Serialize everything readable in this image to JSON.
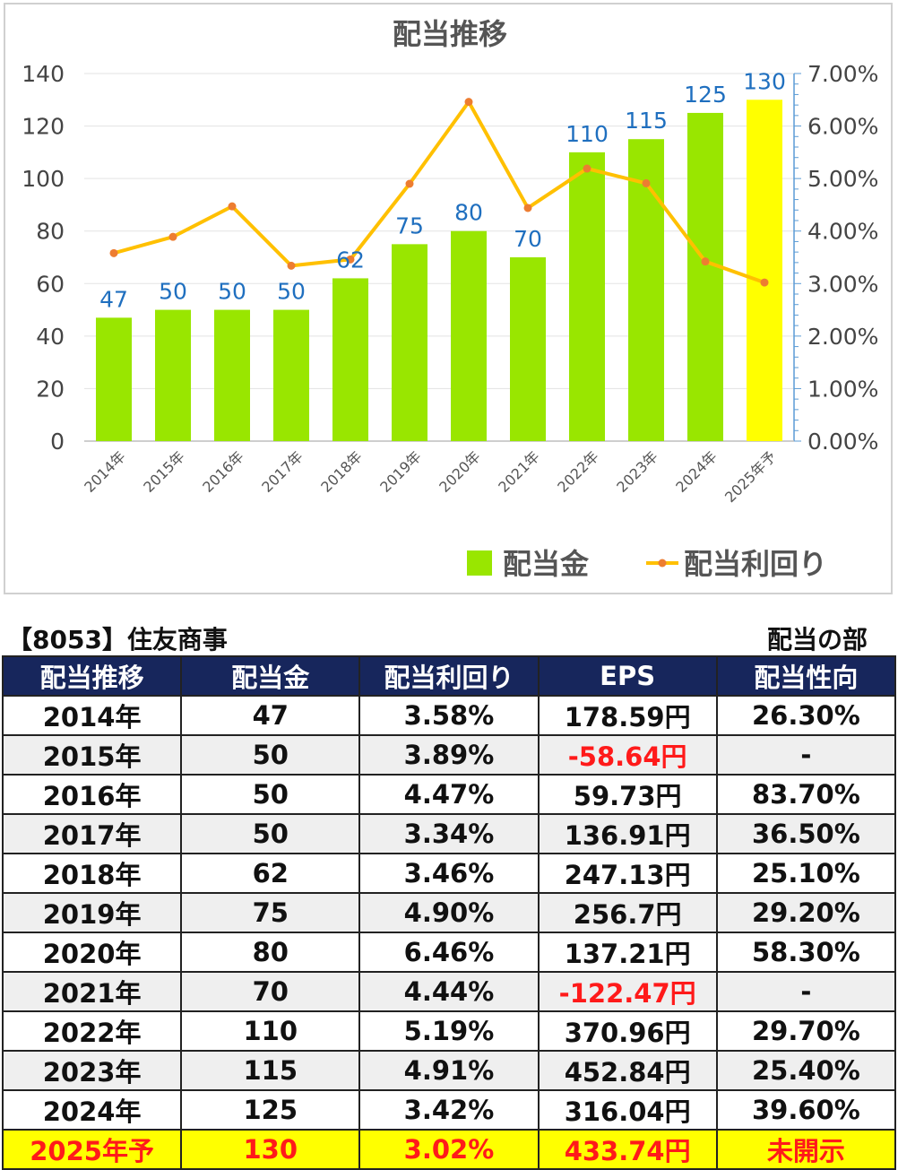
{
  "chart_data": {
    "type": "bar+line",
    "title": "配当推移",
    "categories": [
      "2014年",
      "2015年",
      "2016年",
      "2017年",
      "2018年",
      "2019年",
      "2020年",
      "2021年",
      "2022年",
      "2023年",
      "2024年",
      "2025年予"
    ],
    "series": [
      {
        "name": "配当金",
        "type": "bar",
        "axis": "left",
        "values": [
          47,
          50,
          50,
          50,
          62,
          75,
          80,
          70,
          110,
          115,
          125,
          130
        ],
        "labels": [
          "47",
          "50",
          "50",
          "50",
          "62",
          "75",
          "80",
          "70",
          "110",
          "115",
          "125",
          "130"
        ],
        "color": "#99e600",
        "highlight_last_color": "#ffff00"
      },
      {
        "name": "配当利回り",
        "type": "line",
        "axis": "right",
        "values": [
          3.58,
          3.89,
          4.47,
          3.34,
          3.46,
          4.9,
          6.46,
          4.44,
          5.19,
          4.91,
          3.42,
          3.02
        ],
        "color": "#ffc000",
        "marker_color": "#ed7d31"
      }
    ],
    "ylim": [
      0,
      140
    ],
    "yticks": [
      "0",
      "20",
      "40",
      "60",
      "80",
      "100",
      "120",
      "140"
    ],
    "y2lim": [
      0,
      7
    ],
    "y2ticks": [
      "0.00%",
      "1.00%",
      "2.00%",
      "3.00%",
      "4.00%",
      "5.00%",
      "6.00%",
      "7.00%"
    ],
    "label_color": "#1f6fbf",
    "grid": true,
    "legend": "bottom-right"
  },
  "caption": {
    "left": "【8053】住友商事",
    "right": "配当の部"
  },
  "table": {
    "headers": [
      "配当推移",
      "配当金",
      "配当利回り",
      "EPS",
      "配当性向"
    ],
    "rows": [
      {
        "cells": [
          "2014年",
          "47",
          "3.58%",
          "178.59円",
          "26.30%"
        ],
        "neg": false
      },
      {
        "cells": [
          "2015年",
          "50",
          "3.89%",
          "-58.64円",
          "-"
        ],
        "neg": true
      },
      {
        "cells": [
          "2016年",
          "50",
          "4.47%",
          "59.73円",
          "83.70%"
        ],
        "neg": false
      },
      {
        "cells": [
          "2017年",
          "50",
          "3.34%",
          "136.91円",
          "36.50%"
        ],
        "neg": false
      },
      {
        "cells": [
          "2018年",
          "62",
          "3.46%",
          "247.13円",
          "25.10%"
        ],
        "neg": false
      },
      {
        "cells": [
          "2019年",
          "75",
          "4.90%",
          "256.7円",
          "29.20%"
        ],
        "neg": false
      },
      {
        "cells": [
          "2020年",
          "80",
          "6.46%",
          "137.21円",
          "58.30%"
        ],
        "neg": false
      },
      {
        "cells": [
          "2021年",
          "70",
          "4.44%",
          "-122.47円",
          "-"
        ],
        "neg": true
      },
      {
        "cells": [
          "2022年",
          "110",
          "5.19%",
          "370.96円",
          "29.70%"
        ],
        "neg": false
      },
      {
        "cells": [
          "2023年",
          "115",
          "4.91%",
          "452.84円",
          "25.40%"
        ],
        "neg": false
      },
      {
        "cells": [
          "2024年",
          "125",
          "3.42%",
          "316.04円",
          "39.60%"
        ],
        "neg": false
      },
      {
        "cells": [
          "2025年予",
          "130",
          "3.02%",
          "433.74円",
          "未開示"
        ],
        "neg": false
      }
    ]
  }
}
